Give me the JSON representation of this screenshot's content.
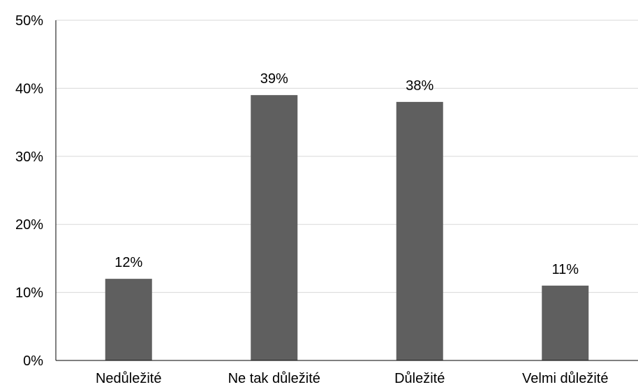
{
  "chart_data": {
    "type": "bar",
    "categories": [
      "Nedůležité",
      "Ne tak důležité",
      "Důležité",
      "Velmi důležité"
    ],
    "values": [
      12,
      39,
      38,
      11
    ],
    "data_labels": [
      "12%",
      "39%",
      "38%",
      "11%"
    ],
    "title": "",
    "xlabel": "",
    "ylabel": "",
    "ylim": [
      0,
      50
    ],
    "yticks": [
      0,
      10,
      20,
      30,
      40,
      50
    ],
    "ytick_labels": [
      "0%",
      "10%",
      "20%",
      "30%",
      "40%",
      "50%"
    ],
    "grid": true,
    "legend": "none",
    "colors": {
      "bar": "#5f5f5f",
      "grid": "#d9d9d9",
      "axis": "#000000"
    }
  }
}
